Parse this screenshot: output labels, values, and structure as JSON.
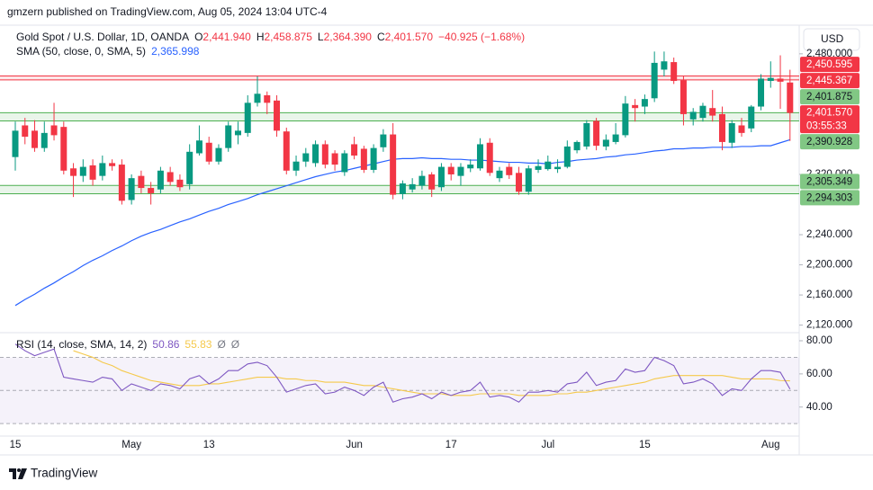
{
  "header": {
    "text": "gmzern published on TradingView.com, Aug 05, 2024 13:04 UTC-4"
  },
  "toolbar": {
    "currency": "USD"
  },
  "footer": {
    "brand": "TradingView"
  },
  "chart_data": {
    "type": "candlestick",
    "title": "Gold Spot / U.S. Dollar, 1D, OANDA",
    "ohlc_legend": [
      {
        "key": "O",
        "value": "2,441.940"
      },
      {
        "key": "H",
        "value": "2,458.875"
      },
      {
        "key": "L",
        "value": "2,364.390"
      },
      {
        "key": "C",
        "value": "2,401.570"
      }
    ],
    "change": "−40.925 (−1.68%)",
    "categories": [
      "15",
      null,
      null,
      null,
      null,
      null,
      null,
      null,
      null,
      null,
      null,
      null,
      "May",
      null,
      null,
      null,
      null,
      null,
      null,
      null,
      "13",
      null,
      null,
      null,
      null,
      null,
      null,
      null,
      null,
      null,
      null,
      null,
      null,
      null,
      null,
      "Jun",
      null,
      null,
      null,
      null,
      null,
      null,
      null,
      null,
      null,
      "17",
      null,
      null,
      null,
      null,
      null,
      null,
      null,
      null,
      null,
      "Jul",
      null,
      null,
      null,
      null,
      null,
      null,
      null,
      null,
      null,
      "15",
      null,
      null,
      null,
      null,
      null,
      null,
      null,
      null,
      null,
      null,
      null,
      null,
      "Aug",
      null,
      null
    ],
    "series": [
      {
        "up_color": "#089981",
        "down_color": "#f23645",
        "open": [
          2343,
          2385,
          2378,
          2355,
          2385,
          2383,
          2328,
          2318,
          2332,
          2318,
          2335,
          2333,
          2286,
          2318,
          2302,
          2300,
          2323,
          2313,
          2307,
          2348,
          2362,
          2337,
          2355,
          2372,
          2375,
          2415,
          2425,
          2418,
          2377,
          2325,
          2337,
          2335,
          2360,
          2348,
          2323,
          2360,
          2354,
          2326,
          2356,
          2373,
          2294,
          2300,
          2305,
          2320,
          2303,
          2330,
          2318,
          2328,
          2328,
          2362,
          2315,
          2330,
          2322,
          2297,
          2326,
          2327,
          2327,
          2330,
          2352,
          2357,
          2391,
          2357,
          2363,
          2372,
          2412,
          2410,
          2421,
          2459,
          2469,
          2445,
          2393,
          2395,
          2408,
          2400,
          2362,
          2385,
          2381,
          2410,
          2444,
          2447,
          2441.94
        ],
        "high": [
          2390,
          2395,
          2392,
          2390,
          2415,
          2390,
          2335,
          2340,
          2340,
          2345,
          2340,
          2340,
          2320,
          2325,
          2310,
          2330,
          2330,
          2320,
          2360,
          2385,
          2370,
          2360,
          2390,
          2390,
          2425,
          2450,
          2430,
          2425,
          2382,
          2345,
          2355,
          2365,
          2365,
          2352,
          2352,
          2370,
          2358,
          2360,
          2380,
          2388,
          2312,
          2315,
          2325,
          2323,
          2335,
          2335,
          2335,
          2340,
          2368,
          2368,
          2330,
          2335,
          2330,
          2332,
          2340,
          2345,
          2340,
          2365,
          2365,
          2392,
          2395,
          2373,
          2388,
          2424,
          2420,
          2426,
          2483,
          2483,
          2475,
          2450,
          2408,
          2415,
          2432,
          2410,
          2392,
          2395,
          2412,
          2453,
          2470,
          2478,
          2458.875
        ],
        "low": [
          2325,
          2360,
          2350,
          2350,
          2365,
          2320,
          2290,
          2310,
          2305,
          2312,
          2325,
          2280,
          2280,
          2295,
          2280,
          2295,
          2305,
          2298,
          2300,
          2345,
          2333,
          2333,
          2350,
          2360,
          2370,
          2410,
          2400,
          2370,
          2320,
          2318,
          2330,
          2330,
          2328,
          2325,
          2318,
          2340,
          2322,
          2322,
          2350,
          2287,
          2287,
          2296,
          2300,
          2290,
          2298,
          2312,
          2305,
          2323,
          2325,
          2318,
          2310,
          2314,
          2293,
          2293,
          2322,
          2325,
          2322,
          2328,
          2348,
          2353,
          2352,
          2352,
          2360,
          2369,
          2390,
          2400,
          2416,
          2450,
          2440,
          2385,
          2385,
          2390,
          2390,
          2352,
          2355,
          2370,
          2376,
          2405,
          2435,
          2407,
          2364.39
        ],
        "close": [
          2378,
          2370,
          2355,
          2375,
          2372,
          2325,
          2318,
          2330,
          2313,
          2335,
          2331,
          2285,
          2315,
          2302,
          2295,
          2325,
          2310,
          2303,
          2350,
          2365,
          2337,
          2355,
          2385,
          2378,
          2415,
          2427,
          2415,
          2378,
          2325,
          2337,
          2348,
          2360,
          2333,
          2333,
          2348,
          2345,
          2326,
          2355,
          2373,
          2293,
          2308,
          2307,
          2318,
          2300,
          2330,
          2320,
          2330,
          2333,
          2360,
          2322,
          2325,
          2319,
          2297,
          2328,
          2331,
          2337,
          2330,
          2357,
          2363,
          2388,
          2358,
          2366,
          2373,
          2414,
          2408,
          2420,
          2468,
          2470,
          2444,
          2400,
          2403,
          2411,
          2398,
          2363,
          2388,
          2375,
          2410,
          2447,
          2448,
          2443,
          2401.57
        ]
      }
    ],
    "overlays": [
      {
        "title": "SMA (50, close, 0, SMA, 5)",
        "color": "#2962ff",
        "last_label": "2,365.998",
        "values": [
          2146,
          2154,
          2161,
          2169,
          2176,
          2184,
          2191,
          2199,
          2206,
          2212,
          2219,
          2225,
          2232,
          2238,
          2243,
          2247,
          2252,
          2257,
          2261,
          2266,
          2271,
          2275,
          2280,
          2284,
          2288,
          2293,
          2297,
          2301,
          2305,
          2309,
          2313,
          2317,
          2320,
          2323,
          2325,
          2328,
          2331,
          2334,
          2337,
          2340,
          2341,
          2341,
          2342,
          2341,
          2341,
          2340,
          2340,
          2339,
          2339,
          2338,
          2337,
          2336,
          2336,
          2335,
          2335,
          2334,
          2336,
          2337,
          2339,
          2340,
          2341,
          2343,
          2344,
          2346,
          2347,
          2349,
          2351,
          2352,
          2354,
          2354,
          2355,
          2355,
          2356,
          2356,
          2356,
          2357,
          2357,
          2358,
          2358,
          2362,
          2365.998
        ]
      }
    ],
    "zones": [
      {
        "color": "#f23645",
        "top": {
          "value": 2450.595,
          "label": "2,450.595"
        },
        "bottom": {
          "value": 2445.367,
          "label": "2,445.367"
        }
      },
      {
        "color": "#4caf50",
        "top": {
          "value": 2401.875,
          "label": "2,401.875"
        },
        "bottom": {
          "value": 2390.928,
          "label": "2,390.928"
        }
      },
      {
        "color": "#4caf50",
        "top": {
          "value": 2305.349,
          "label": "2,305.349"
        },
        "bottom": {
          "value": 2294.303,
          "label": "2,294.303"
        }
      }
    ],
    "last_price": {
      "value": 2401.57,
      "label": "2,401.570",
      "countdown": "03:55:33",
      "color": "#f23645"
    },
    "ylim": [
      2110,
      2518
    ],
    "yticks": [
      {
        "value": 2120,
        "label": "2,120.000"
      },
      {
        "value": 2160,
        "label": "2,160.000"
      },
      {
        "value": 2200,
        "label": "2,200.000"
      },
      {
        "value": 2240,
        "label": "2,240.000"
      },
      {
        "value": 2320,
        "label": "2,320.000"
      },
      {
        "value": 2480,
        "label": "2,480.000"
      }
    ],
    "indicator": {
      "type": "line",
      "title": "RSI (14, close, SMA, 14, 2)",
      "extras": [
        "Ø",
        "Ø"
      ],
      "series": [
        {
          "color": "#7e57c2",
          "last_label": "50.86",
          "values": [
            78,
            74,
            71,
            73,
            75,
            58,
            57,
            56,
            55,
            58,
            57,
            50,
            54,
            52,
            50,
            54,
            53,
            51,
            57,
            59,
            54,
            57,
            62,
            62,
            66,
            67,
            65,
            58,
            49,
            51,
            53,
            54,
            48,
            49,
            52,
            50,
            47,
            52,
            55,
            43,
            45,
            46,
            48,
            45,
            49,
            47,
            49,
            50,
            55,
            46,
            47,
            46,
            43,
            49,
            49,
            50,
            49,
            54,
            55,
            61,
            53,
            55,
            56,
            63,
            61,
            62,
            70,
            68,
            65,
            54,
            55,
            57,
            54,
            47,
            51,
            50,
            57,
            62,
            62,
            61,
            50.86
          ]
        },
        {
          "color": "#f5c94b",
          "last_label": "55.83",
          "values": [
            null,
            null,
            null,
            null,
            null,
            null,
            74,
            72,
            70,
            67,
            65,
            62,
            60,
            58,
            56,
            55,
            54,
            53,
            53,
            53,
            54,
            54,
            55,
            56,
            57,
            58,
            58,
            58,
            57,
            57,
            56,
            56,
            55,
            55,
            55,
            54,
            53,
            53,
            52,
            51,
            50,
            49,
            48,
            48,
            48,
            47,
            47,
            47,
            48,
            48,
            48,
            48,
            47,
            47,
            47,
            47,
            48,
            48,
            49,
            49,
            50,
            51,
            52,
            53,
            54,
            55,
            57,
            58,
            59,
            59,
            59,
            59,
            59,
            59,
            58,
            57,
            57,
            57,
            57,
            56,
            55.83
          ]
        }
      ],
      "ylim": [
        22.5,
        83.8
      ],
      "yticks": [
        {
          "value": 40,
          "label": "40.00"
        },
        {
          "value": 60,
          "label": "60.00"
        },
        {
          "value": 80,
          "label": "80.00"
        }
      ],
      "bands": [
        30,
        70
      ],
      "midline": 50
    }
  }
}
